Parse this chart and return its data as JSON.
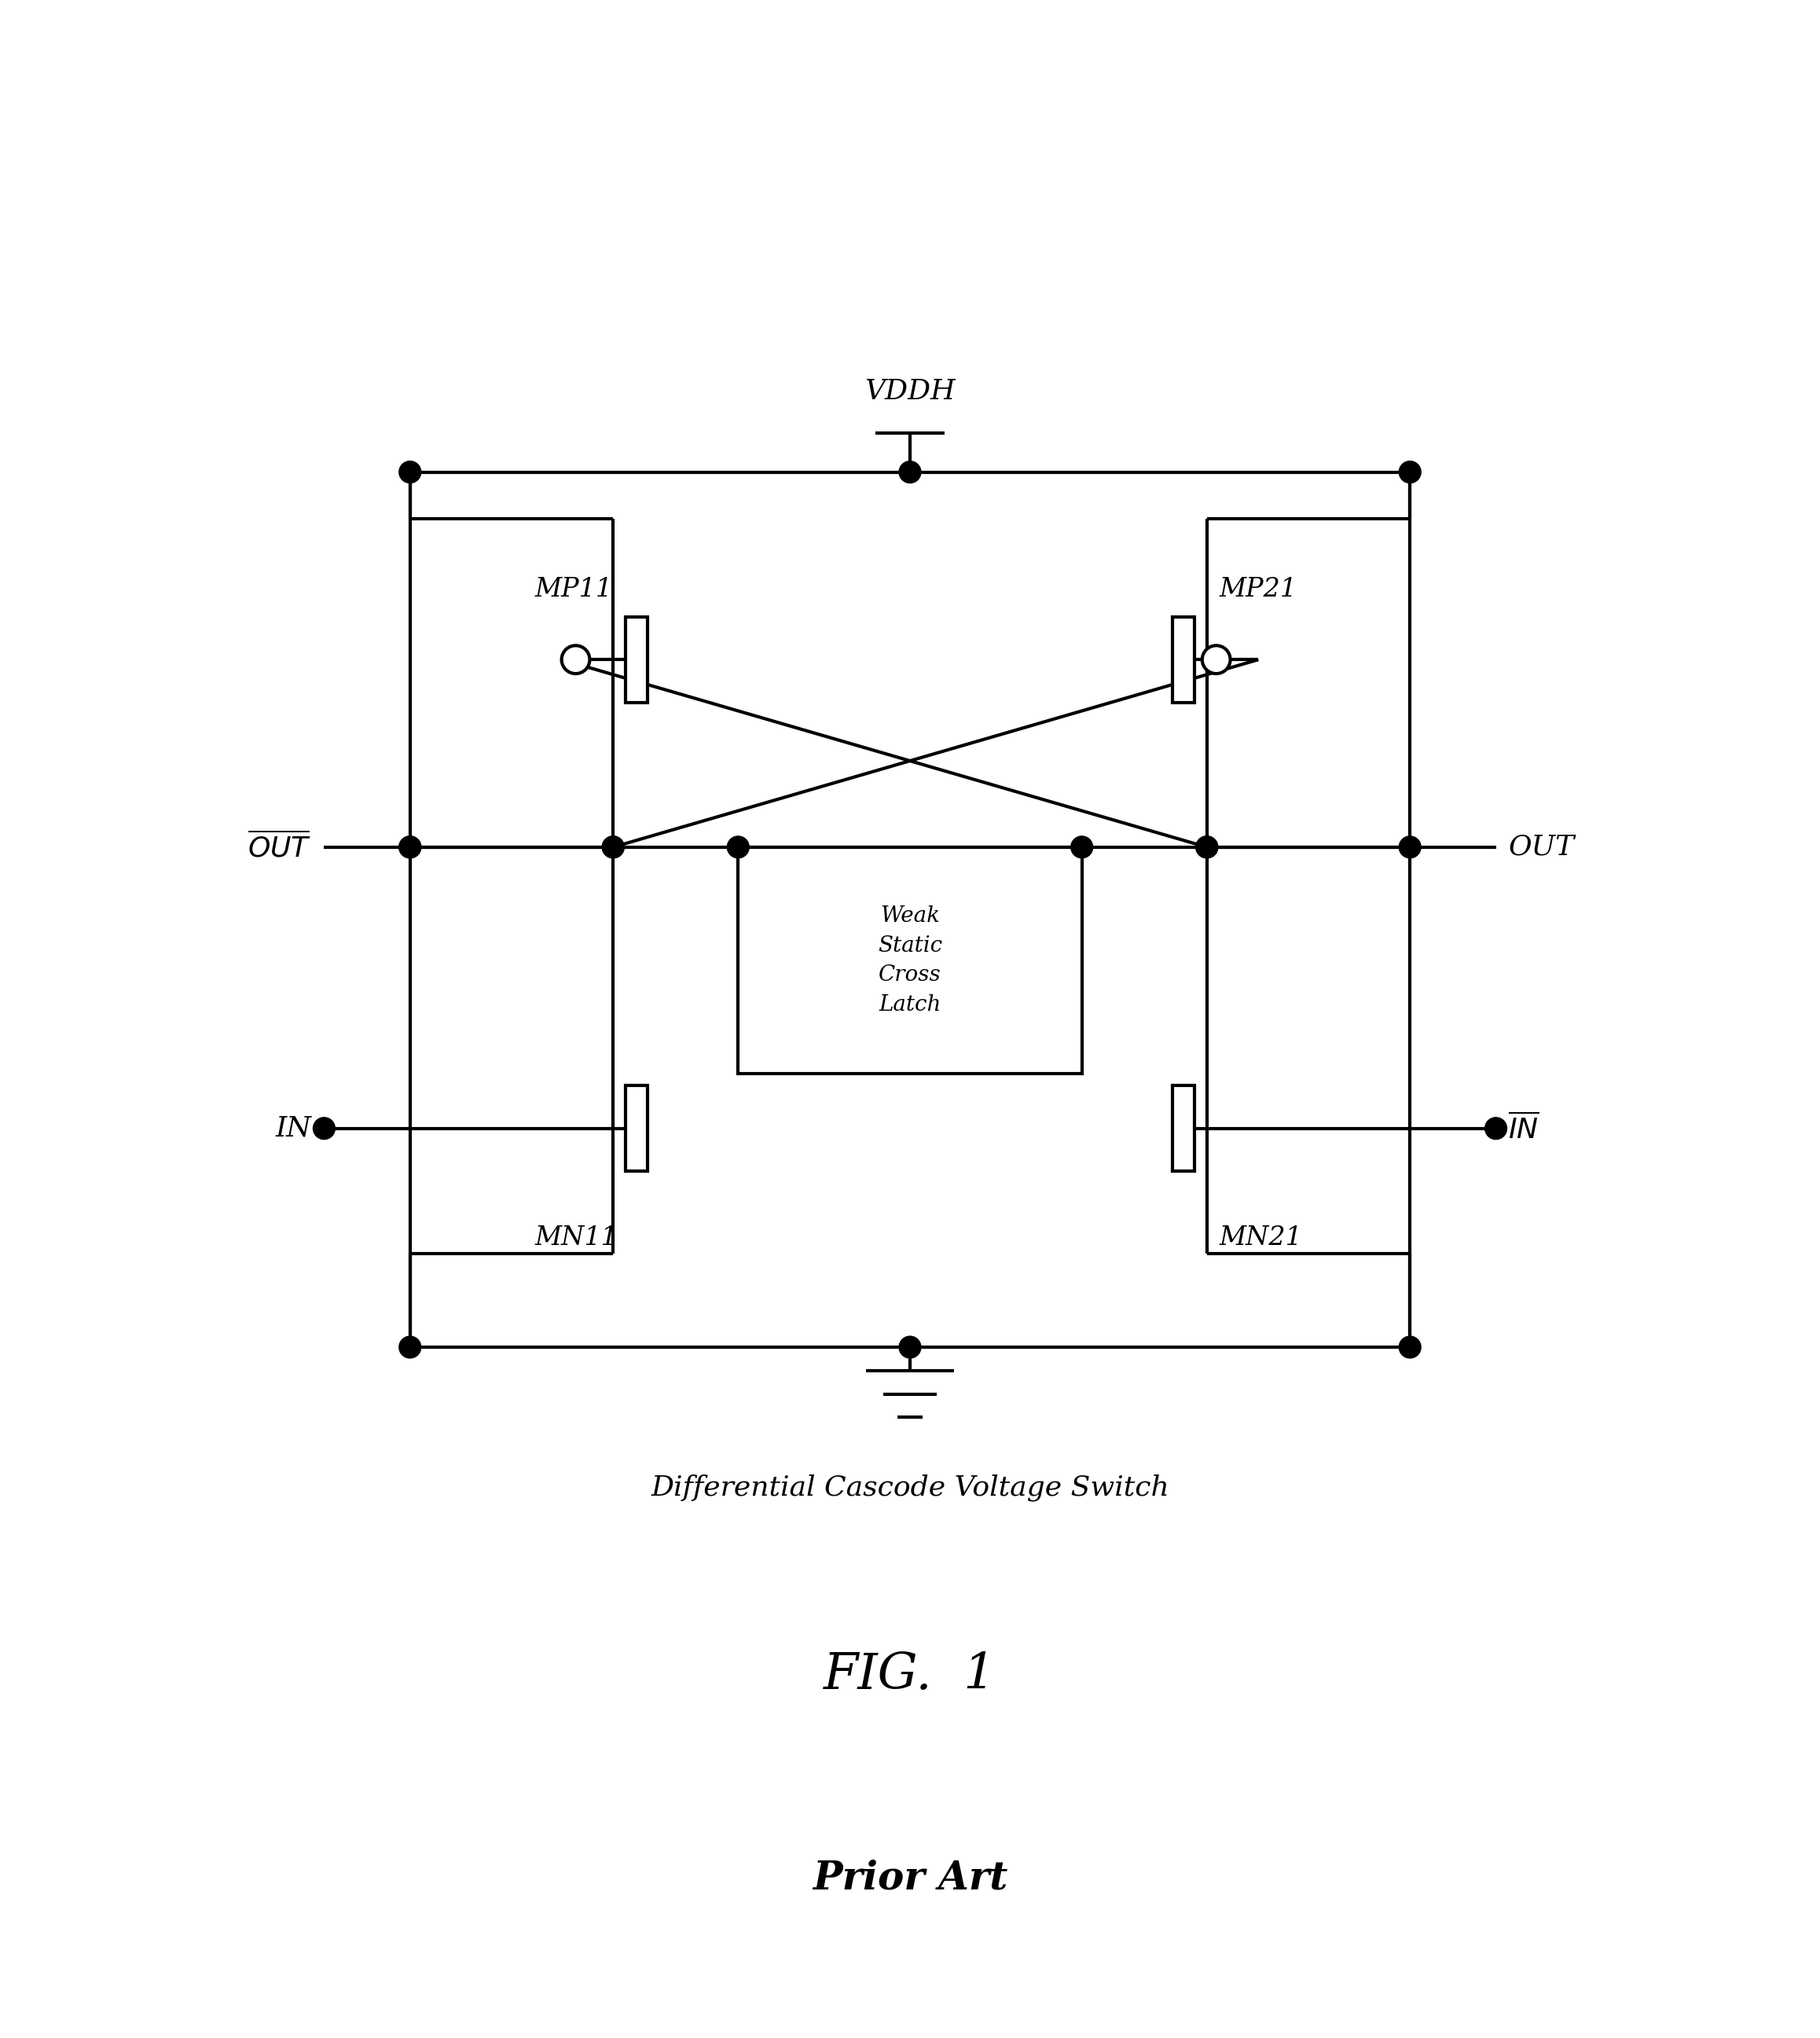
{
  "bg_color": "#ffffff",
  "line_color": "#000000",
  "lw": 3.0,
  "dot_r": 0.07,
  "fig_width": 23.16,
  "fig_height": 25.93,
  "caption": "Differential Cascode Voltage Switch",
  "fig_label": "FIG.  1",
  "prior_art": "Prior Art",
  "vddh_label": "VDDH",
  "mp11_label": "MP11",
  "mp21_label": "MP21",
  "mn11_label": "MN11",
  "mn21_label": "MN21"
}
